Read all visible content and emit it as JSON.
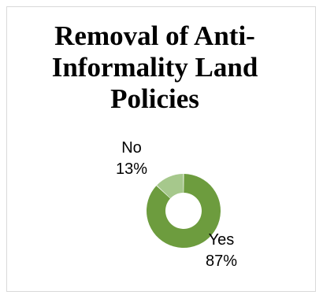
{
  "chart_data": {
    "type": "pie",
    "variant": "doughnut",
    "title": "Removal of Anti-\nInformality Land\nPolicies",
    "categories": [
      "Yes",
      "No"
    ],
    "values": [
      87,
      13
    ],
    "value_labels": [
      "87%",
      "13%"
    ],
    "slice_colors": [
      "#6d9c3e",
      "#a6c88c"
    ],
    "legend": "none"
  }
}
